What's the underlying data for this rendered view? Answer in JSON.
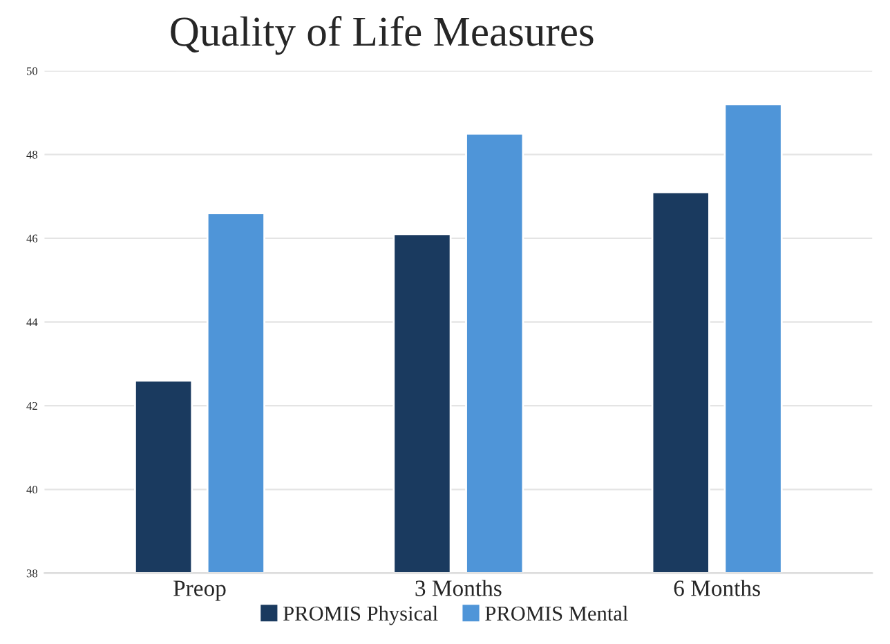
{
  "chart_data": {
    "type": "bar",
    "title": "Quality of Life Measures",
    "categories": [
      "Preop",
      "3 Months",
      "6 Months"
    ],
    "series": [
      {
        "name": "PROMIS Physical",
        "color": "#1a3a5f",
        "values": [
          42.6,
          46.1,
          47.1
        ]
      },
      {
        "name": "PROMIS Mental",
        "color": "#4f95d8",
        "values": [
          46.6,
          48.5,
          49.2
        ]
      }
    ],
    "ylim": [
      38,
      50
    ],
    "yticks": [
      38,
      40,
      42,
      44,
      46,
      48,
      50
    ],
    "grid": "y",
    "legend": "bottom"
  }
}
